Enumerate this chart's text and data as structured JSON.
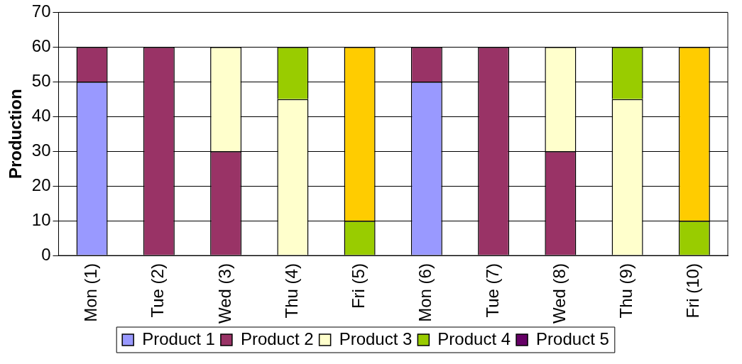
{
  "chart_data": {
    "type": "bar",
    "stacked": true,
    "ylabel": "Production",
    "categories": [
      "Mon (1)",
      "Tue (2)",
      "Wed (3)",
      "Thu (4)",
      "Fri (5)",
      "Mon (6)",
      "Tue (7)",
      "Wed (8)",
      "Thu (9)",
      "Fri (10)"
    ],
    "series": [
      {
        "name": "Product 1",
        "color": "#9999ff",
        "values": [
          50,
          null,
          null,
          null,
          null,
          50,
          null,
          null,
          null,
          null
        ]
      },
      {
        "name": "Product 2",
        "color": "#993366",
        "values": [
          10,
          60,
          30,
          null,
          null,
          10,
          60,
          30,
          null,
          null
        ]
      },
      {
        "name": "Product 3",
        "color": "#ffffcc",
        "values": [
          null,
          null,
          30,
          45,
          null,
          null,
          null,
          30,
          45,
          null
        ]
      },
      {
        "name": "Product 4",
        "color": "#99cc00",
        "values": [
          null,
          null,
          null,
          15,
          10,
          null,
          null,
          null,
          15,
          10
        ]
      },
      {
        "name": "Product 5",
        "color": "#660066",
        "values": [
          null,
          null,
          null,
          null,
          null,
          null,
          null,
          null,
          null,
          null
        ]
      },
      {
        "color": "#ffcc00",
        "values": [
          null,
          null,
          null,
          null,
          50,
          null,
          null,
          null,
          null,
          50
        ]
      }
    ],
    "ylim": [
      0,
      70
    ],
    "yticks": [
      0,
      10,
      20,
      30,
      40,
      50,
      60,
      70
    ],
    "grid": "y",
    "legend": "bottom"
  }
}
